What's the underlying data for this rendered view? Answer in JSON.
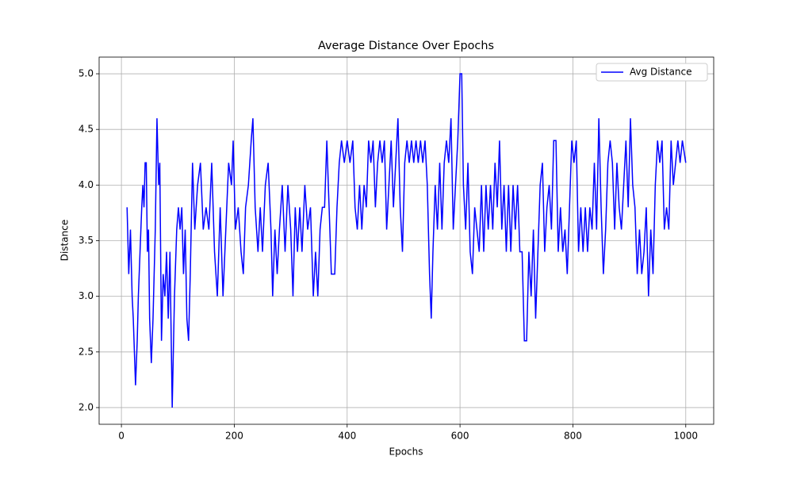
{
  "chart_data": {
    "type": "line",
    "title": "Average Distance Over Epochs",
    "xlabel": "Epochs",
    "ylabel": "Distance",
    "x": [
      10,
      13,
      16,
      19,
      21,
      25,
      28,
      30,
      33,
      36,
      38,
      40,
      42,
      44,
      46,
      48,
      50,
      53,
      56,
      60,
      63,
      66,
      68,
      71,
      74,
      77,
      80,
      83,
      86,
      90,
      94,
      98,
      101,
      104,
      107,
      110,
      113,
      116,
      119,
      122,
      126,
      130,
      135,
      140,
      145,
      150,
      155,
      160,
      165,
      170,
      175,
      180,
      185,
      190,
      195,
      198,
      202,
      207,
      212,
      216,
      220,
      225,
      230,
      233,
      237,
      242,
      246,
      250,
      255,
      260,
      265,
      268,
      272,
      276,
      280,
      285,
      290,
      295,
      300,
      304,
      308,
      312,
      316,
      320,
      325,
      330,
      335,
      340,
      344,
      348,
      352,
      356,
      360,
      364,
      368,
      372,
      378,
      382,
      386,
      390,
      395,
      400,
      405,
      410,
      414,
      418,
      422,
      426,
      430,
      434,
      438,
      442,
      446,
      450,
      454,
      458,
      462,
      466,
      470,
      474,
      478,
      482,
      486,
      490,
      494,
      498,
      502,
      506,
      510,
      514,
      518,
      522,
      526,
      530,
      534,
      538,
      542,
      546,
      549,
      552,
      556,
      560,
      564,
      568,
      572,
      576,
      580,
      584,
      588,
      592,
      596,
      600,
      603,
      606,
      610,
      614,
      618,
      622,
      626,
      630,
      634,
      638,
      642,
      646,
      650,
      654,
      658,
      662,
      666,
      670,
      674,
      678,
      682,
      686,
      690,
      694,
      698,
      702,
      706,
      710,
      714,
      718,
      722,
      726,
      730,
      734,
      738,
      742,
      746,
      750,
      754,
      758,
      762,
      766,
      770,
      774,
      778,
      782,
      786,
      790,
      794,
      798,
      802,
      806,
      810,
      814,
      818,
      822,
      826,
      830,
      834,
      838,
      842,
      846,
      850,
      854,
      858,
      862,
      866,
      870,
      874,
      878,
      882,
      886,
      890,
      894,
      898,
      902,
      906,
      910,
      914,
      918,
      922,
      926,
      930,
      934,
      938,
      942,
      946,
      950,
      954,
      958,
      962,
      966,
      970,
      974,
      978,
      982,
      986,
      990,
      994,
      1000
    ],
    "series": [
      {
        "name": "Avg Distance",
        "color": "#0000ff",
        "values": [
          3.8,
          3.2,
          3.6,
          3.0,
          2.8,
          2.2,
          2.6,
          3.0,
          3.4,
          3.8,
          4.0,
          3.8,
          4.2,
          4.2,
          3.4,
          3.6,
          2.8,
          2.4,
          2.8,
          3.6,
          4.6,
          4.0,
          4.2,
          2.6,
          3.2,
          3.0,
          3.4,
          2.8,
          3.4,
          2.0,
          3.0,
          3.6,
          3.8,
          3.6,
          3.8,
          3.2,
          3.6,
          2.8,
          2.6,
          3.2,
          4.2,
          3.6,
          4.0,
          4.2,
          3.6,
          3.8,
          3.6,
          4.2,
          3.4,
          3.0,
          3.8,
          3.0,
          3.6,
          4.2,
          4.0,
          4.4,
          3.6,
          3.8,
          3.4,
          3.2,
          3.8,
          4.0,
          4.4,
          4.6,
          3.8,
          3.4,
          3.8,
          3.4,
          4.0,
          4.2,
          3.6,
          3.0,
          3.6,
          3.2,
          3.6,
          4.0,
          3.4,
          4.0,
          3.6,
          3.0,
          3.8,
          3.4,
          3.8,
          3.4,
          4.0,
          3.6,
          3.8,
          3.0,
          3.4,
          3.0,
          3.6,
          3.8,
          3.8,
          4.4,
          3.8,
          3.2,
          3.2,
          3.8,
          4.2,
          4.4,
          4.2,
          4.4,
          4.2,
          4.4,
          3.8,
          3.6,
          4.0,
          3.6,
          4.0,
          3.8,
          4.4,
          4.2,
          4.4,
          3.8,
          4.2,
          4.4,
          4.2,
          4.4,
          3.6,
          4.0,
          4.4,
          3.8,
          4.2,
          4.6,
          3.8,
          3.4,
          4.2,
          4.4,
          4.2,
          4.4,
          4.2,
          4.4,
          4.2,
          4.4,
          4.2,
          4.4,
          4.0,
          3.2,
          2.8,
          3.4,
          4.0,
          3.6,
          4.2,
          3.6,
          4.2,
          4.4,
          4.2,
          4.6,
          3.6,
          4.0,
          4.4,
          5.0,
          5.0,
          4.0,
          3.6,
          4.2,
          3.4,
          3.2,
          3.8,
          3.6,
          3.4,
          4.0,
          3.4,
          4.0,
          3.6,
          4.0,
          3.6,
          4.2,
          3.8,
          4.4,
          3.6,
          4.0,
          3.4,
          4.0,
          3.4,
          4.0,
          3.6,
          4.0,
          3.4,
          3.4,
          2.6,
          2.6,
          3.4,
          3.0,
          3.6,
          2.8,
          3.4,
          4.0,
          4.2,
          3.4,
          3.8,
          4.0,
          3.6,
          4.4,
          4.4,
          3.4,
          3.8,
          3.4,
          3.6,
          3.2,
          3.8,
          4.4,
          4.2,
          4.4,
          3.4,
          3.8,
          3.4,
          3.8,
          3.4,
          3.8,
          3.6,
          4.2,
          3.6,
          4.6,
          3.8,
          3.2,
          3.6,
          4.2,
          4.4,
          4.2,
          3.6,
          4.2,
          3.8,
          3.6,
          4.0,
          4.4,
          3.8,
          4.6,
          4.0,
          3.8,
          3.2,
          3.6,
          3.2,
          3.4,
          3.8,
          3.0,
          3.6,
          3.2,
          4.0,
          4.4,
          4.2,
          4.4,
          3.6,
          3.8,
          3.6,
          4.4,
          4.0,
          4.2,
          4.4,
          4.2,
          4.4,
          4.2
        ]
      }
    ],
    "xlim": [
      -39.5,
      1049.5
    ],
    "xticks": [
      0,
      200,
      400,
      600,
      800,
      1000
    ],
    "ylim": [
      1.85,
      5.15
    ],
    "yticks": [
      {
        "value": 2,
        "label": "2.0"
      },
      2.5,
      {
        "value": 3,
        "label": "3.0"
      },
      3.5,
      {
        "value": 4,
        "label": "4.0"
      },
      4.5,
      {
        "value": 5,
        "label": "5.0"
      }
    ],
    "grid": true,
    "legend": "upper right"
  }
}
